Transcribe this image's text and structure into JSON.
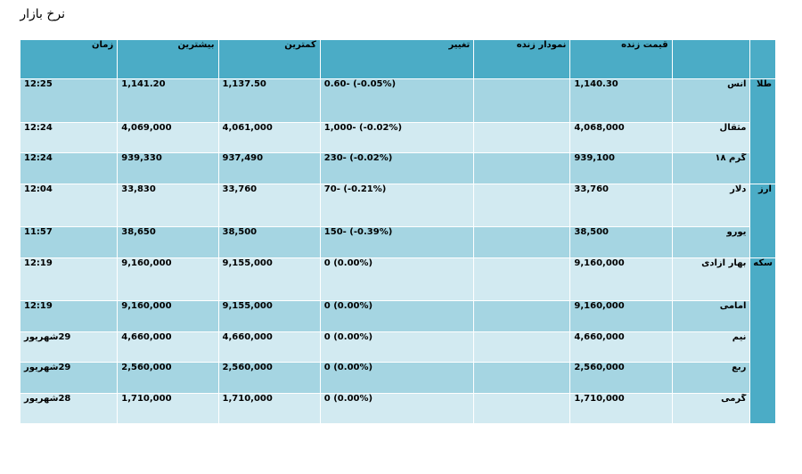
{
  "page_title": "نرخ بازار",
  "headers": {
    "group": "",
    "name": "",
    "live_price": "قیمت زنده",
    "live_chart": "نمودار زنده",
    "change": "تغییر",
    "low": "کمترین",
    "high": "بیشترین",
    "time": "زمان"
  },
  "groups": [
    {
      "label": "طلا",
      "rows": [
        {
          "name": "انس",
          "price": "1,140.30",
          "chart": "",
          "change": "0.60- (-0.05%)",
          "low": "1,137.50",
          "high": "1,141.20",
          "time": "12:25"
        },
        {
          "name": "مثقال",
          "price": "4,068,000",
          "chart": "",
          "change": "1,000- (-0.02%)",
          "low": "4,061,000",
          "high": "4,069,000",
          "time": "12:24"
        },
        {
          "name": "گرم ۱۸",
          "price": "939,100",
          "chart": "",
          "change": "230- (-0.02%)",
          "low": "937,490",
          "high": "939,330",
          "time": "12:24"
        }
      ]
    },
    {
      "label": "ارز",
      "rows": [
        {
          "name": "دلار",
          "price": "33,760",
          "chart": "",
          "change": "70- (-0.21%)",
          "low": "33,760",
          "high": "33,830",
          "time": "12:04"
        },
        {
          "name": "یورو",
          "price": "38,500",
          "chart": "",
          "change": "150- (-0.39%)",
          "low": "38,500",
          "high": "38,650",
          "time": "11:57"
        }
      ]
    },
    {
      "label": "سکه",
      "rows": [
        {
          "name": "بهار آزادی",
          "price": "9,160,000",
          "chart": "",
          "change": "0 (0.00%)",
          "low": "9,155,000",
          "high": "9,160,000",
          "time": "12:19"
        },
        {
          "name": "امامی",
          "price": "9,160,000",
          "chart": "",
          "change": "0 (0.00%)",
          "low": "9,155,000",
          "high": "9,160,000",
          "time": "12:19"
        },
        {
          "name": "نیم",
          "price": "4,660,000",
          "chart": "",
          "change": "0 (0.00%)",
          "low": "4,660,000",
          "high": "4,660,000",
          "time": "29شهریور"
        },
        {
          "name": "ربع",
          "price": "2,560,000",
          "chart": "",
          "change": "0 (0.00%)",
          "low": "2,560,000",
          "high": "2,560,000",
          "time": "29شهریور"
        },
        {
          "name": "گرمی",
          "price": "1,710,000",
          "chart": "",
          "change": "0 (0.00%)",
          "low": "1,710,000",
          "high": "1,710,000",
          "time": "28شهریور"
        }
      ]
    }
  ],
  "colors": {
    "header": "#4bacc6",
    "row_dark": "#a5d5e2",
    "row_light": "#d2eaf1"
  }
}
